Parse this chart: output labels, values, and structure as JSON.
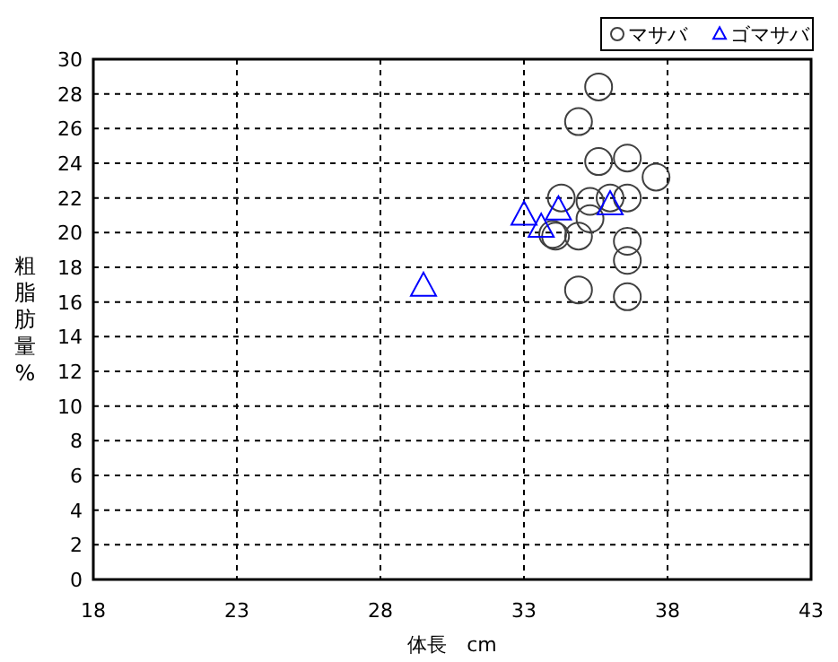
{
  "chart_data": {
    "type": "scatter",
    "xlabel": "体長　cm",
    "ylabel": "粗脂肪量%",
    "xlim": [
      18,
      43
    ],
    "xticks": [
      18,
      23,
      28,
      33,
      38,
      43
    ],
    "ylim": [
      0,
      30
    ],
    "yticks": [
      0,
      2,
      4,
      6,
      8,
      10,
      12,
      14,
      16,
      18,
      20,
      22,
      24,
      26,
      28,
      30
    ],
    "grid": true,
    "line_style": "dashed",
    "legend": "top right",
    "series": [
      {
        "name": "マサバ",
        "color": "#404040",
        "marker": "circle",
        "x": [
          35.6,
          34.9,
          35.6,
          36.6,
          37.6,
          34.3,
          35.3,
          36.0,
          36.6,
          35.3,
          34.0,
          34.1,
          34.9,
          36.6,
          36.6,
          34.9,
          36.6
        ],
        "values": [
          28.4,
          26.4,
          24.1,
          24.3,
          23.2,
          22.0,
          21.8,
          22.0,
          22.0,
          20.8,
          19.9,
          19.8,
          19.8,
          19.5,
          18.4,
          16.7,
          16.3
        ]
      },
      {
        "name": "ゴマサバ",
        "color": "#0000ff",
        "marker": "triangle",
        "x": [
          33.0,
          33.6,
          34.2,
          36.0,
          29.5
        ],
        "values": [
          21.0,
          20.3,
          21.3,
          21.6,
          16.9
        ]
      }
    ]
  }
}
